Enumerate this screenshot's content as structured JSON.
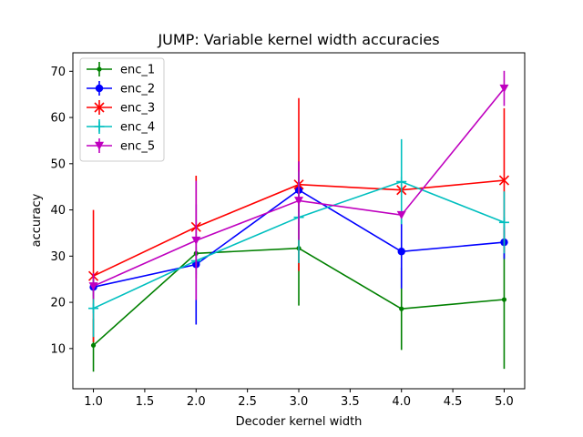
{
  "chart_data": {
    "type": "line",
    "title": "JUMP: Variable kernel width accuracies",
    "xlabel": "Decoder kernel width",
    "ylabel": "accuracy",
    "x": [
      1.0,
      2.0,
      3.0,
      4.0,
      5.0
    ],
    "xlim": [
      0.8,
      5.2
    ],
    "ylim": [
      1.3,
      74.0
    ],
    "xticks": [
      1.0,
      1.5,
      2.0,
      2.5,
      3.0,
      3.5,
      4.0,
      4.5,
      5.0
    ],
    "xtick_labels": [
      "1.0",
      "1.5",
      "2.0",
      "2.5",
      "3.0",
      "3.5",
      "4.0",
      "4.5",
      "5.0"
    ],
    "yticks": [
      10,
      20,
      30,
      40,
      50,
      60,
      70
    ],
    "ytick_labels": [
      "10",
      "20",
      "30",
      "40",
      "50",
      "60",
      "70"
    ],
    "grid": false,
    "legend_position": "upper-left",
    "series": [
      {
        "name": "enc_1",
        "color": "#008000",
        "marker": "point",
        "values": [
          10.7,
          30.6,
          31.7,
          18.6,
          20.6
        ],
        "err_low": [
          5.0,
          30.0,
          19.3,
          9.7,
          5.6
        ],
        "err_high": [
          16.4,
          31.2,
          44.1,
          27.5,
          35.6
        ]
      },
      {
        "name": "enc_2",
        "color": "#0000ff",
        "marker": "circle",
        "values": [
          23.3,
          28.2,
          44.3,
          31.0,
          33.0
        ],
        "err_low": [
          21.3,
          15.2,
          38.1,
          23.0,
          29.4
        ],
        "err_high": [
          25.3,
          41.2,
          50.5,
          39.0,
          36.6
        ]
      },
      {
        "name": "enc_3",
        "color": "#ff0000",
        "marker": "x",
        "values": [
          25.7,
          36.3,
          45.5,
          44.3,
          46.4
        ],
        "err_low": [
          11.4,
          25.2,
          26.8,
          44.3,
          30.8
        ],
        "err_high": [
          40.0,
          47.4,
          64.2,
          44.3,
          62.0
        ]
      },
      {
        "name": "enc_4",
        "color": "#00bfbf",
        "marker": "plus",
        "values": [
          18.7,
          29.0,
          38.4,
          46.1,
          37.3
        ],
        "err_low": [
          12.5,
          26.0,
          28.5,
          36.9,
          30.6
        ],
        "err_high": [
          24.9,
          32.0,
          48.3,
          55.3,
          44.0
        ]
      },
      {
        "name": "enc_5",
        "color": "#bf00bf",
        "marker": "triangle-down",
        "values": [
          23.5,
          33.4,
          42.0,
          38.9,
          66.3
        ],
        "err_low": [
          20.7,
          20.5,
          33.5,
          38.9,
          62.5
        ],
        "err_high": [
          26.3,
          46.3,
          50.5,
          38.9,
          70.1
        ]
      }
    ]
  }
}
